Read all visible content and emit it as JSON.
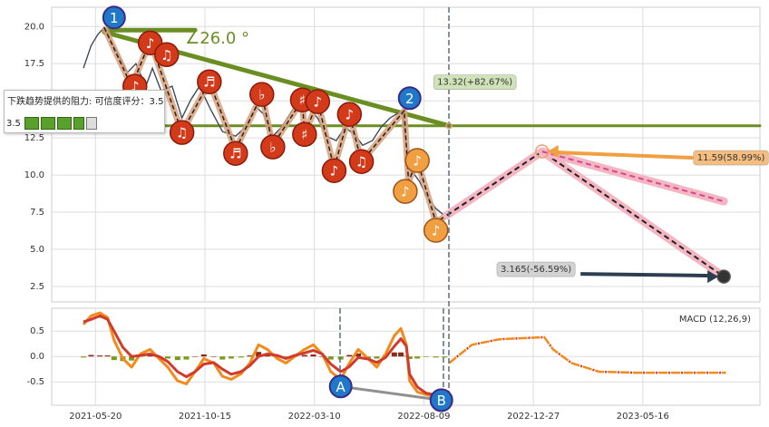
{
  "chart_data": [
    {
      "type": "line",
      "annotation": {
        "text": "下跌趋势提供的阻力: 可信度评分：3.5",
        "score": "3.5"
      },
      "angle_label": "∠26.0 °",
      "xlim": [
        -40,
        607
      ],
      "ylim": [
        1.46,
        21.3
      ],
      "yticks": [
        2.5,
        {
          "value": 5,
          "label": "5.0"
        },
        7.5,
        {
          "value": 10,
          "label": "10.0"
        },
        12.5,
        {
          "value": 15,
          "label": "15.0"
        },
        17.5,
        {
          "value": 20,
          "label": "20.0"
        }
      ],
      "grid": true,
      "series": [
        {
          "color": "#3d4b5c",
          "x": [
            -11,
            -4,
            2,
            8,
            14,
            21,
            29,
            37,
            46,
            52,
            60,
            70,
            79,
            87,
            95,
            105,
            116,
            128,
            137,
            147,
            153,
            162,
            170,
            178,
            186,
            195,
            203,
            211,
            220,
            228,
            238,
            244,
            253,
            261,
            269,
            280,
            284,
            290,
            296,
            302,
            311,
            319
          ],
          "values": [
            17.2,
            18.72,
            19.45,
            19.94,
            19.02,
            18.11,
            16.89,
            17.5,
            15.98,
            17.2,
            15.67,
            15.98,
            13.84,
            15.06,
            15.98,
            14.45,
            12.93,
            12.62,
            13.23,
            14.57,
            14.15,
            12.62,
            13.23,
            14.15,
            15.06,
            14.45,
            13.84,
            12.62,
            12.32,
            13.23,
            12.62,
            12.01,
            12.32,
            13.23,
            13.84,
            14.33,
            12.01,
            10.18,
            9.57,
            8.66,
            7.74,
            7.26
          ]
        },
        {
          "color": "#222222",
          "halo": "#d9a07a",
          "x": [
            8,
            33,
            50,
            79,
            104,
            128,
            152,
            162,
            189,
            191,
            203,
            218,
            232,
            243,
            282,
            286,
            294,
            311,
            321
          ],
          "values": [
            19.94,
            15.98,
            19.02,
            12.87,
            16.28,
            11.71,
            15.43,
            12.01,
            15.06,
            12.74,
            14.94,
            10.49,
            14.09,
            10.91,
            14.33,
            9.57,
            10.98,
            6.83,
            7.29
          ]
        }
      ],
      "trend_lines": [
        {
          "color": "#6b8e23",
          "x": [
            8,
            91
          ],
          "values": [
            19.76,
            19.76
          ]
        },
        {
          "color": "#6b8e23",
          "x": [
            8,
            323
          ],
          "values": [
            19.63,
            13.32
          ]
        },
        {
          "color": "#6b8e23",
          "x": [
            -40,
            607
          ],
          "values": [
            13.32,
            13.32
          ]
        }
      ],
      "forecast": [
        {
          "color": "#222222",
          "halo": "#f4b6c2",
          "x": [
            321,
            408,
            574
          ],
          "values": [
            7.29,
            11.59,
            3.165
          ]
        },
        {
          "color": "#d6478f",
          "halo": "#f4b6c2",
          "x": [
            408,
            574
          ],
          "values": [
            11.59,
            8.23
          ]
        }
      ],
      "targets": [
        {
          "x": 323,
          "value": 13.32,
          "label": "13.32(+82.67%)",
          "color": "#cfe2b8"
        },
        {
          "x": 408,
          "value": 11.59,
          "label": "11.59(58.99%)",
          "color": "#f6bd80"
        },
        {
          "x": 574,
          "value": 3.165,
          "label": "3.165(-56.59%)",
          "color": "#d3d3d3"
        }
      ],
      "waves": [
        {
          "label": "1",
          "x": 17,
          "value": 20.61
        },
        {
          "label": "2",
          "x": 287,
          "value": 15.18
        }
      ],
      "notes": [
        {
          "x": 36,
          "value": 15.98,
          "symbol": "♪",
          "color": "#d23a1a"
        },
        {
          "x": 50,
          "value": 18.9,
          "symbol": "♪",
          "color": "#d23a1a"
        },
        {
          "x": 65,
          "value": 18.11,
          "symbol": "♫",
          "color": "#d23a1a"
        },
        {
          "x": 79,
          "value": 12.87,
          "symbol": "♫",
          "color": "#d23a1a"
        },
        {
          "x": 104,
          "value": 16.28,
          "symbol": "♬",
          "color": "#d23a1a"
        },
        {
          "x": 128,
          "value": 11.46,
          "symbol": "♬",
          "color": "#d23a1a"
        },
        {
          "x": 152,
          "value": 15.43,
          "symbol": "♭",
          "color": "#d23a1a"
        },
        {
          "x": 162,
          "value": 11.89,
          "symbol": "♭",
          "color": "#d23a1a"
        },
        {
          "x": 189,
          "value": 15.06,
          "symbol": "♯",
          "color": "#d23a1a"
        },
        {
          "x": 203,
          "value": 14.94,
          "symbol": "♪",
          "color": "#d23a1a"
        },
        {
          "x": 191,
          "value": 12.74,
          "symbol": "♯",
          "color": "#d23a1a"
        },
        {
          "x": 232,
          "value": 14.09,
          "symbol": "♪",
          "color": "#d23a1a"
        },
        {
          "x": 218,
          "value": 10.3,
          "symbol": "♪",
          "color": "#d23a1a"
        },
        {
          "x": 243,
          "value": 10.91,
          "symbol": "♫",
          "color": "#d23a1a"
        },
        {
          "x": 294,
          "value": 10.98,
          "symbol": "♪",
          "color": "#f0a040"
        },
        {
          "x": 283,
          "value": 8.9,
          "symbol": "♪",
          "color": "#f0a040"
        },
        {
          "x": 311,
          "value": 6.28,
          "symbol": "♪",
          "color": "#f0a040"
        }
      ]
    },
    {
      "type": "line",
      "title": "MACD (12,26,9)",
      "xlim": [
        -40,
        607
      ],
      "ylim": [
        -0.96,
        0.95
      ],
      "xticks": [
        {
          "value": 0,
          "label": "2021-05-20"
        },
        {
          "value": 100,
          "label": "2021-10-15"
        },
        {
          "value": 200,
          "label": "2022-03-10"
        },
        {
          "value": 300,
          "label": "2022-08-09"
        },
        {
          "value": 400,
          "label": "2022-12-27"
        },
        {
          "value": 500,
          "label": "2023-05-16"
        }
      ],
      "yticks": [
        -0.5,
        {
          "value": 0,
          "label": "0.0"
        },
        0.5
      ],
      "grid": true,
      "x": [
        -11,
        -4,
        4,
        11,
        17,
        25,
        33,
        41,
        50,
        58,
        66,
        75,
        83,
        91,
        99,
        108,
        116,
        124,
        133,
        141,
        149,
        157,
        166,
        174,
        182,
        191,
        199,
        207,
        215,
        224,
        232,
        240,
        249,
        257,
        265,
        273,
        279,
        284,
        287,
        294,
        302,
        311,
        319
      ],
      "series": [
        {
          "color": "#f28a1e",
          "values": [
            0.63,
            0.8,
            0.86,
            0.77,
            0.32,
            -0.04,
            -0.21,
            0.05,
            0.14,
            -0.04,
            -0.21,
            -0.48,
            -0.54,
            -0.3,
            -0.04,
            -0.13,
            -0.39,
            -0.45,
            -0.34,
            -0.13,
            0.23,
            0.14,
            -0.04,
            -0.13,
            0,
            0.14,
            0.23,
            0.05,
            -0.3,
            -0.45,
            -0.13,
            0.14,
            -0.04,
            -0.21,
            0.05,
            0.41,
            0.55,
            0.23,
            -0.48,
            -0.7,
            -0.75,
            -0.8,
            -0.84
          ]
        },
        {
          "color": "#d13b2b",
          "values": [
            0.68,
            0.73,
            0.8,
            0.73,
            0.5,
            0.18,
            0,
            0.02,
            0.05,
            0,
            -0.1,
            -0.3,
            -0.4,
            -0.3,
            -0.15,
            -0.12,
            -0.25,
            -0.35,
            -0.3,
            -0.18,
            0,
            0.05,
            0.02,
            -0.04,
            0.02,
            0.07,
            0.12,
            0.05,
            -0.15,
            -0.3,
            -0.2,
            -0.02,
            -0.05,
            -0.12,
            -0.02,
            0.2,
            0.35,
            0.2,
            -0.35,
            -0.6,
            -0.72,
            -0.76,
            -0.8
          ]
        }
      ],
      "histogram": {
        "colors": [
          "#8b2a1a",
          "#7a9a1a"
        ],
        "values": [
          -0.02,
          0.03,
          0.02,
          0.02,
          -0.07,
          -0.09,
          -0.08,
          0.01,
          0.04,
          -0.02,
          -0.04,
          -0.07,
          -0.06,
          0,
          0.04,
          0,
          -0.06,
          -0.04,
          -0.02,
          0.02,
          0.09,
          0.04,
          -0.02,
          -0.04,
          -0.01,
          0.03,
          0.04,
          0,
          -0.06,
          -0.06,
          0.03,
          0.06,
          -0.06,
          -0.04,
          0.03,
          0.08,
          0.08,
          0.01,
          -0.05,
          -0.04,
          -0.01,
          -0.02,
          -0.02
        ]
      },
      "forecast": {
        "colors": [
          "#f28a1e",
          "#d13b2b"
        ],
        "x": [
          323,
          344,
          369,
          410,
          418,
          435,
          460,
          493,
          576
        ],
        "values": [
          -0.13,
          0.23,
          0.34,
          0.38,
          0.14,
          -0.13,
          -0.3,
          -0.32,
          -0.32
        ]
      },
      "waves": [
        {
          "label": "A",
          "x": 224,
          "value": -0.59
        },
        {
          "label": "B",
          "x": 316,
          "value": -0.86
        }
      ],
      "connector_color": "#909090"
    }
  ]
}
